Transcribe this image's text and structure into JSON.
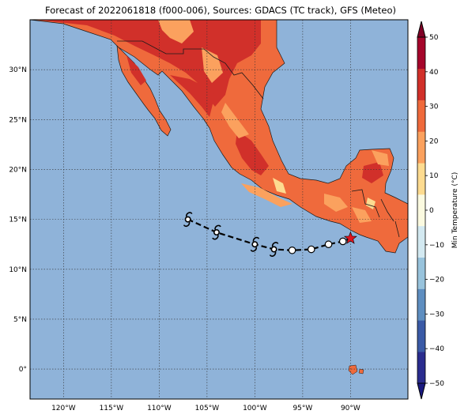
{
  "title": "Forecast of 2022061818 (f000-006), Sources: GDACS (TC track), GFS (Meteo)",
  "map": {
    "lon_range": [
      -123.5,
      -84
    ],
    "lat_range": [
      -3,
      35
    ],
    "ocean_color": "#8fb3d9",
    "grid": true,
    "lat_ticks": [
      {
        "value": 30,
        "label": "30°N"
      },
      {
        "value": 25,
        "label": "25°N"
      },
      {
        "value": 20,
        "label": "20°N"
      },
      {
        "value": 15,
        "label": "15°N"
      },
      {
        "value": 10,
        "label": "10°N"
      },
      {
        "value": 5,
        "label": "5°N"
      },
      {
        "value": 0,
        "label": "0°"
      }
    ],
    "lon_ticks": [
      {
        "value": -120,
        "label": "120°W"
      },
      {
        "value": -115,
        "label": "115°W"
      },
      {
        "value": -110,
        "label": "110°W"
      },
      {
        "value": -105,
        "label": "105°W"
      },
      {
        "value": -100,
        "label": "100°W"
      },
      {
        "value": -95,
        "label": "95°W"
      },
      {
        "value": -90,
        "label": "90°W"
      }
    ]
  },
  "track": {
    "current_position": {
      "lon": -90.0,
      "lat": 13.1
    },
    "points": [
      {
        "lon": -107.0,
        "lat": 15.0,
        "symbol": "cyclone"
      },
      {
        "lon": -104.0,
        "lat": 13.7,
        "symbol": "cyclone"
      },
      {
        "lon": -100.0,
        "lat": 12.5,
        "symbol": "cyclone"
      },
      {
        "lon": -98.0,
        "lat": 12.0,
        "symbol": "cyclone"
      },
      {
        "lon": -96.1,
        "lat": 11.9,
        "symbol": "circle"
      },
      {
        "lon": -94.1,
        "lat": 12.0,
        "symbol": "circle"
      },
      {
        "lon": -92.3,
        "lat": 12.5,
        "symbol": "circle"
      },
      {
        "lon": -90.8,
        "lat": 12.8,
        "symbol": "circle"
      }
    ]
  },
  "colorbar": {
    "label": "Min Temperature (°C)",
    "ticks": [
      "50",
      "40",
      "30",
      "20",
      "10",
      "0",
      "−10",
      "−20",
      "−30",
      "−40",
      "−50"
    ],
    "bands": [
      "#2a2c8e",
      "#3a5aa6",
      "#5e8ec0",
      "#98c3dc",
      "#d3e9f1",
      "#fbfae0",
      "#fddb90",
      "#fba15e",
      "#ef6a3c",
      "#d1302a",
      "#a5062b"
    ],
    "extend_low_color": "#1a1a80",
    "extend_high_color": "#800026"
  }
}
